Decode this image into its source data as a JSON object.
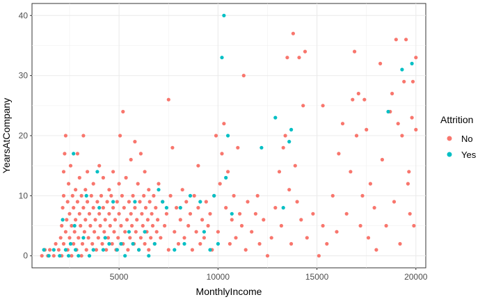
{
  "chart_data": {
    "type": "scatter",
    "xlabel": "MonthlyIncome",
    "ylabel": "YearsAtCompany",
    "xlim": [
      600,
      20500
    ],
    "ylim": [
      -2,
      42
    ],
    "xticks": [
      5000,
      10000,
      15000,
      20000
    ],
    "yticks": [
      0,
      10,
      20,
      30,
      40
    ],
    "grid": true,
    "legend": {
      "title": "Attrition",
      "position": "right"
    },
    "series": [
      {
        "name": "No",
        "color": "#F8766D",
        "points": [
          [
            1100,
            0
          ],
          [
            1250,
            1
          ],
          [
            1400,
            0
          ],
          [
            1500,
            1
          ],
          [
            1700,
            0
          ],
          [
            1800,
            2
          ],
          [
            1950,
            1
          ],
          [
            2050,
            3
          ],
          [
            2100,
            0
          ],
          [
            2100,
            5
          ],
          [
            2150,
            8
          ],
          [
            2200,
            2
          ],
          [
            2200,
            10
          ],
          [
            2200,
            14
          ],
          [
            2250,
            17
          ],
          [
            2300,
            20
          ],
          [
            2300,
            4
          ],
          [
            2350,
            6
          ],
          [
            2400,
            1
          ],
          [
            2400,
            9
          ],
          [
            2450,
            12
          ],
          [
            2500,
            3
          ],
          [
            2500,
            7
          ],
          [
            2550,
            15
          ],
          [
            2600,
            0
          ],
          [
            2600,
            5
          ],
          [
            2650,
            10
          ],
          [
            2700,
            2
          ],
          [
            2700,
            8
          ],
          [
            2750,
            4
          ],
          [
            2800,
            6
          ],
          [
            2800,
            11
          ],
          [
            2850,
            1
          ],
          [
            2900,
            9
          ],
          [
            2900,
            17
          ],
          [
            2950,
            3
          ],
          [
            3000,
            7
          ],
          [
            3000,
            13
          ],
          [
            3050,
            5
          ],
          [
            3100,
            0
          ],
          [
            3100,
            10
          ],
          [
            3150,
            2
          ],
          [
            3200,
            8
          ],
          [
            3200,
            20
          ],
          [
            3250,
            4
          ],
          [
            3300,
            6
          ],
          [
            3300,
            11
          ],
          [
            3350,
            1
          ],
          [
            3400,
            9
          ],
          [
            3400,
            14
          ],
          [
            3450,
            3
          ],
          [
            3500,
            7
          ],
          [
            3550,
            5
          ],
          [
            3600,
            10
          ],
          [
            3650,
            2
          ],
          [
            3700,
            8
          ],
          [
            3700,
            12
          ],
          [
            3750,
            4
          ],
          [
            3800,
            6
          ],
          [
            3850,
            1
          ],
          [
            3900,
            9
          ],
          [
            3950,
            3
          ],
          [
            4000,
            7
          ],
          [
            4000,
            15
          ],
          [
            4050,
            5
          ],
          [
            4100,
            10
          ],
          [
            4150,
            2
          ],
          [
            4200,
            8
          ],
          [
            4200,
            13
          ],
          [
            4250,
            4
          ],
          [
            4300,
            6
          ],
          [
            4350,
            1
          ],
          [
            4400,
            9
          ],
          [
            4450,
            3
          ],
          [
            4500,
            7
          ],
          [
            4500,
            11
          ],
          [
            4550,
            5
          ],
          [
            4600,
            10
          ],
          [
            4650,
            2
          ],
          [
            4700,
            8
          ],
          [
            4700,
            14
          ],
          [
            4750,
            4
          ],
          [
            4800,
            6
          ],
          [
            4850,
            1
          ],
          [
            4900,
            9
          ],
          [
            4950,
            3
          ],
          [
            5000,
            7
          ],
          [
            5000,
            12
          ],
          [
            5050,
            20
          ],
          [
            5100,
            5
          ],
          [
            5150,
            10
          ],
          [
            5200,
            24
          ],
          [
            5200,
            2
          ],
          [
            5250,
            8
          ],
          [
            5300,
            4
          ],
          [
            5350,
            13
          ],
          [
            5400,
            6
          ],
          [
            5450,
            1
          ],
          [
            5500,
            9
          ],
          [
            5550,
            3
          ],
          [
            5600,
            7
          ],
          [
            5600,
            16
          ],
          [
            5650,
            5
          ],
          [
            5700,
            10
          ],
          [
            5750,
            2
          ],
          [
            5800,
            8
          ],
          [
            5800,
            19
          ],
          [
            5850,
            4
          ],
          [
            5900,
            6
          ],
          [
            5950,
            12
          ],
          [
            6000,
            1
          ],
          [
            6050,
            9
          ],
          [
            6100,
            3
          ],
          [
            6100,
            17
          ],
          [
            6150,
            7
          ],
          [
            6200,
            5
          ],
          [
            6250,
            10
          ],
          [
            6300,
            2
          ],
          [
            6300,
            14
          ],
          [
            6350,
            8
          ],
          [
            6400,
            4
          ],
          [
            6450,
            6
          ],
          [
            6500,
            1
          ],
          [
            6500,
            11
          ],
          [
            6550,
            9
          ],
          [
            6600,
            3
          ],
          [
            6650,
            7
          ],
          [
            6700,
            5
          ],
          [
            6750,
            10
          ],
          [
            6800,
            2
          ],
          [
            6850,
            8
          ],
          [
            6900,
            4
          ],
          [
            6950,
            6
          ],
          [
            7000,
            12
          ],
          [
            7100,
            3
          ],
          [
            7200,
            9
          ],
          [
            7300,
            5
          ],
          [
            7400,
            7
          ],
          [
            7500,
            26
          ],
          [
            7500,
            1
          ],
          [
            7600,
            10
          ],
          [
            7700,
            18
          ],
          [
            7800,
            4
          ],
          [
            7900,
            8
          ],
          [
            8000,
            2
          ],
          [
            8100,
            6
          ],
          [
            8200,
            11
          ],
          [
            8300,
            3
          ],
          [
            8400,
            9
          ],
          [
            8500,
            5
          ],
          [
            8600,
            7
          ],
          [
            8700,
            1
          ],
          [
            8800,
            10
          ],
          [
            8900,
            4
          ],
          [
            9000,
            8
          ],
          [
            9000,
            15
          ],
          [
            9100,
            2
          ],
          [
            9200,
            6
          ],
          [
            9300,
            3
          ],
          [
            9400,
            9
          ],
          [
            9500,
            5
          ],
          [
            9600,
            7
          ],
          [
            9700,
            1
          ],
          [
            9800,
            10
          ],
          [
            9900,
            20
          ],
          [
            10000,
            4
          ],
          [
            10100,
            12
          ],
          [
            10200,
            17
          ],
          [
            10300,
            22
          ],
          [
            10400,
            8
          ],
          [
            10500,
            14
          ],
          [
            10600,
            2
          ],
          [
            10700,
            6
          ],
          [
            10800,
            10
          ],
          [
            10900,
            3
          ],
          [
            11000,
            18
          ],
          [
            11100,
            7
          ],
          [
            11200,
            5
          ],
          [
            11300,
            30
          ],
          [
            11400,
            1
          ],
          [
            11500,
            9
          ],
          [
            11700,
            4
          ],
          [
            11900,
            7
          ],
          [
            12000,
            10
          ],
          [
            12100,
            2
          ],
          [
            12300,
            6
          ],
          [
            12500,
            0
          ],
          [
            12700,
            3
          ],
          [
            12900,
            8
          ],
          [
            13100,
            14
          ],
          [
            13200,
            5
          ],
          [
            13300,
            18
          ],
          [
            13400,
            20
          ],
          [
            13500,
            33
          ],
          [
            13600,
            11
          ],
          [
            13700,
            2
          ],
          [
            13800,
            37
          ],
          [
            13900,
            15
          ],
          [
            14000,
            9
          ],
          [
            14100,
            33
          ],
          [
            14200,
            6
          ],
          [
            14300,
            25
          ],
          [
            14400,
            34
          ],
          [
            14500,
            3
          ],
          [
            14800,
            7
          ],
          [
            15100,
            0
          ],
          [
            15300,
            5
          ],
          [
            15300,
            25
          ],
          [
            15500,
            2
          ],
          [
            15800,
            10
          ],
          [
            16000,
            4
          ],
          [
            16100,
            17
          ],
          [
            16300,
            22
          ],
          [
            16500,
            7
          ],
          [
            16700,
            14
          ],
          [
            16800,
            26
          ],
          [
            16900,
            34
          ],
          [
            17000,
            20
          ],
          [
            17100,
            27
          ],
          [
            17200,
            5
          ],
          [
            17300,
            10
          ],
          [
            17400,
            26
          ],
          [
            17500,
            21
          ],
          [
            17600,
            3
          ],
          [
            17700,
            12
          ],
          [
            17900,
            8
          ],
          [
            18000,
            1
          ],
          [
            18200,
            32
          ],
          [
            18300,
            16
          ],
          [
            18500,
            5
          ],
          [
            18700,
            24
          ],
          [
            18800,
            27
          ],
          [
            18900,
            9
          ],
          [
            19000,
            36
          ],
          [
            19100,
            22
          ],
          [
            19200,
            2
          ],
          [
            19300,
            20
          ],
          [
            19400,
            29
          ],
          [
            19500,
            36
          ],
          [
            19600,
            12
          ],
          [
            19700,
            7
          ],
          [
            19800,
            23
          ],
          [
            19900,
            5
          ],
          [
            20000,
            33
          ],
          [
            20000,
            21
          ],
          [
            19850,
            29
          ],
          [
            19650,
            14
          ]
        ]
      },
      {
        "name": "Yes",
        "color": "#00BFC4",
        "points": [
          [
            1200,
            1
          ],
          [
            1450,
            0
          ],
          [
            1700,
            1
          ],
          [
            2000,
            0
          ],
          [
            2150,
            6
          ],
          [
            2300,
            1
          ],
          [
            2450,
            0
          ],
          [
            2550,
            2
          ],
          [
            2700,
            17
          ],
          [
            2750,
            5
          ],
          [
            2800,
            1
          ],
          [
            2950,
            0
          ],
          [
            3200,
            3
          ],
          [
            3350,
            10
          ],
          [
            3500,
            0
          ],
          [
            3700,
            1
          ],
          [
            3900,
            14
          ],
          [
            4000,
            8
          ],
          [
            4200,
            1
          ],
          [
            4300,
            3
          ],
          [
            4500,
            2
          ],
          [
            4700,
            9
          ],
          [
            4900,
            1
          ],
          [
            5100,
            2
          ],
          [
            5300,
            0
          ],
          [
            5500,
            4
          ],
          [
            5700,
            2
          ],
          [
            5800,
            9
          ],
          [
            6000,
            1
          ],
          [
            6300,
            4
          ],
          [
            6500,
            0
          ],
          [
            6800,
            2
          ],
          [
            7000,
            11
          ],
          [
            7200,
            9
          ],
          [
            7400,
            8
          ],
          [
            7800,
            1
          ],
          [
            8100,
            8
          ],
          [
            8300,
            2
          ],
          [
            8600,
            10
          ],
          [
            9100,
            9
          ],
          [
            9300,
            4
          ],
          [
            9600,
            1
          ],
          [
            9800,
            10
          ],
          [
            10000,
            2
          ],
          [
            10200,
            33
          ],
          [
            10300,
            40
          ],
          [
            10400,
            13
          ],
          [
            10500,
            20
          ],
          [
            10700,
            7
          ],
          [
            12200,
            18
          ],
          [
            12900,
            23
          ],
          [
            13300,
            8
          ],
          [
            13600,
            19
          ],
          [
            13700,
            21
          ],
          [
            18600,
            24
          ],
          [
            19300,
            31
          ],
          [
            19800,
            32
          ]
        ]
      }
    ]
  }
}
